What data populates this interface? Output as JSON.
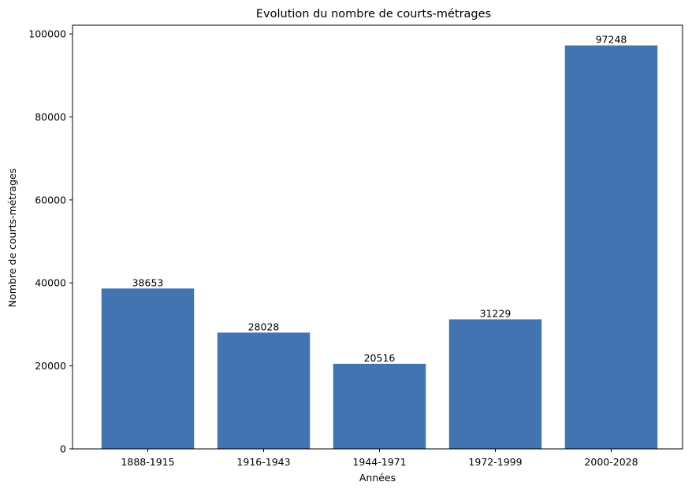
{
  "chart_data": {
    "type": "bar",
    "title": "Evolution du nombre de courts-métrages",
    "xlabel": "Années",
    "ylabel": "Nombre de courts-métrages",
    "categories": [
      "1888-1915",
      "1916-1943",
      "1944-1971",
      "1972-1999",
      "2000-2028"
    ],
    "values": [
      38653,
      28028,
      20516,
      31229,
      97248
    ],
    "data_labels": [
      "38653",
      "28028",
      "20516",
      "31229",
      "97248"
    ],
    "ylim": [
      0,
      102110
    ],
    "yticks": [
      0,
      20000,
      40000,
      60000,
      80000,
      100000
    ],
    "ytick_labels": [
      "0",
      "20000",
      "40000",
      "60000",
      "80000",
      "100000"
    ],
    "grid": false,
    "legend": "none",
    "colors": {
      "bar": "#4274b2",
      "axis": "#000000"
    }
  }
}
